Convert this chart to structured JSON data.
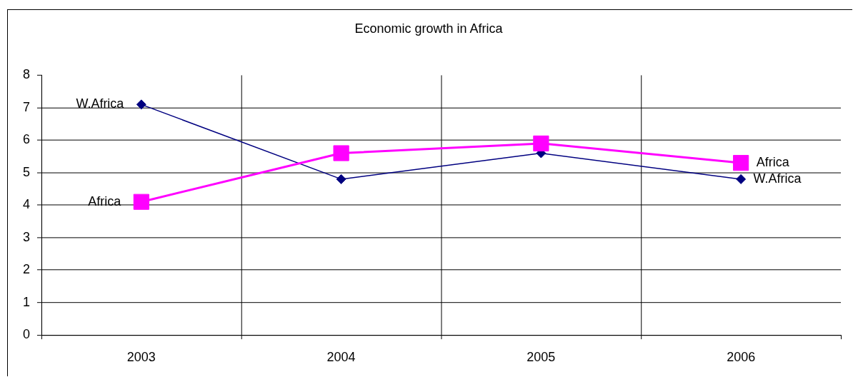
{
  "chart_data": {
    "type": "line",
    "title": "Economic growth in Africa",
    "categories": [
      "2003",
      "2004",
      "2005",
      "2006"
    ],
    "series": [
      {
        "name": "W.Africa",
        "color": "#000080",
        "marker": "diamond",
        "values": [
          7.1,
          4.8,
          5.6,
          4.8
        ]
      },
      {
        "name": "Africa",
        "color": "#ff00ff",
        "marker": "square",
        "values": [
          4.1,
          5.6,
          5.9,
          5.3
        ]
      }
    ],
    "ylim": [
      0,
      8
    ],
    "yticks": [
      0,
      1,
      2,
      3,
      4,
      5,
      6,
      7,
      8
    ],
    "grid": true,
    "legend": false,
    "line_style": "solid"
  }
}
